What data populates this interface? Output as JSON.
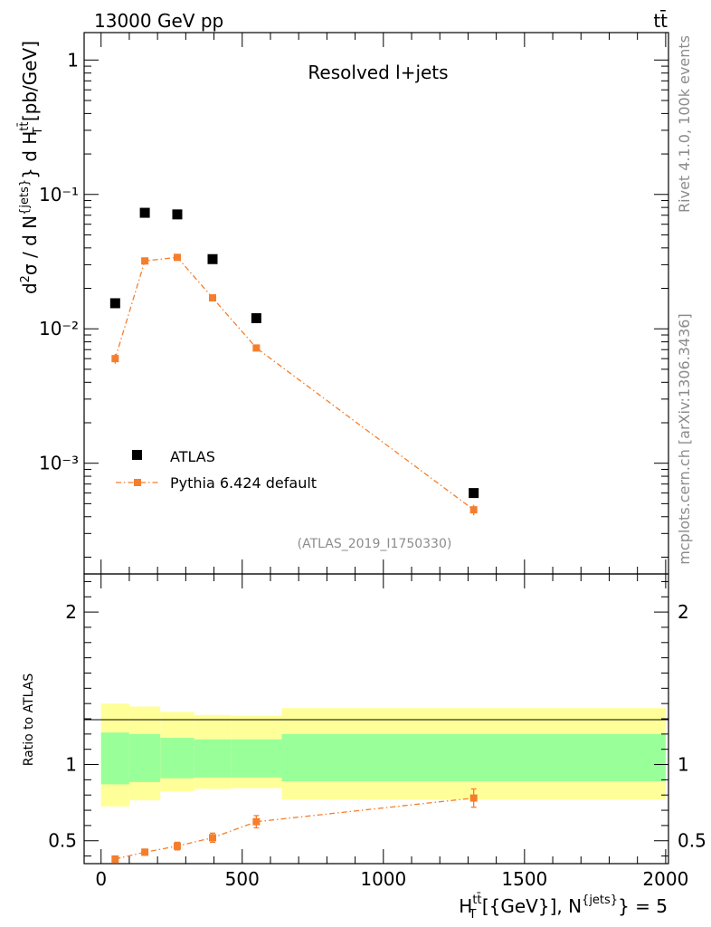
{
  "header": {
    "left": "13000 GeV pp",
    "right": "tt̄"
  },
  "side_labels": {
    "rivet": "Rivet 4.1.0,  100k events",
    "mcplots": "mcplots.cern.ch [arXiv:1306.3436]"
  },
  "chart_data": [
    {
      "type": "scatter",
      "title": "Resolved l+jets",
      "ylabel": "d²σ / d N^{jets} d H_T^{tt̄} [pb/GeV]",
      "yscale": "log",
      "ylim": [
        0.00015,
        1.6
      ],
      "xlim": [
        -60,
        2010
      ],
      "analysis_tag": "(ATLAS_2019_I1750330)",
      "y_ticks": [
        {
          "value": 1,
          "label": "1"
        },
        {
          "value": 0.1,
          "label": "10⁻¹"
        },
        {
          "value": 0.01,
          "label": "10⁻²"
        },
        {
          "value": 0.001,
          "label": "10⁻³"
        }
      ],
      "legend": {
        "position": "bottom-left",
        "entries": [
          "ATLAS",
          "Pythia 6.424 default"
        ]
      },
      "series": [
        {
          "name": "ATLAS",
          "style": "black-squares",
          "color": "#000000",
          "x": [
            50,
            155,
            270,
            395,
            550,
            1320
          ],
          "y": [
            0.0155,
            0.073,
            0.071,
            0.033,
            0.012,
            0.0006
          ]
        },
        {
          "name": "Pythia 6.424 default",
          "style": "orange-dashdot-line",
          "color": "#f57e2d",
          "x": [
            50,
            155,
            270,
            395,
            550,
            1320
          ],
          "y": [
            0.006,
            0.032,
            0.034,
            0.017,
            0.0072,
            0.00045
          ],
          "yerr": [
            0.0005,
            0.0015,
            0.0015,
            0.0008,
            0.0003,
            4e-05
          ]
        }
      ]
    },
    {
      "type": "line",
      "ylabel": "Ratio to ATLAS",
      "xlabel": "H_T^{tt̄} [{GeV}], N^{jets} = 5",
      "xlim": [
        -60,
        2010
      ],
      "ylim": [
        0.35,
        2.25
      ],
      "x_ticks": [
        0,
        500,
        1000,
        1500,
        2000
      ],
      "x_tick_labels": [
        "0",
        "500",
        "1000",
        "1500",
        "2000"
      ],
      "y_ticks": [
        0.5,
        1,
        2
      ],
      "y_tick_labels": [
        "0.5",
        "1",
        "2"
      ],
      "bands": {
        "bins": [
          [
            0,
            100
          ],
          [
            100,
            210
          ],
          [
            210,
            330
          ],
          [
            330,
            460
          ],
          [
            460,
            640
          ],
          [
            640,
            2000
          ]
        ],
        "yellow_lo": [
          0.725,
          0.765,
          0.825,
          0.84,
          0.845,
          0.77
        ],
        "yellow_hi": [
          1.4,
          1.38,
          1.345,
          1.325,
          1.32,
          1.37
        ],
        "green_lo": [
          0.87,
          0.885,
          0.91,
          0.915,
          0.915,
          0.89
        ],
        "green_hi": [
          1.21,
          1.2,
          1.175,
          1.165,
          1.165,
          1.2
        ],
        "yellow_color": "#ffff99",
        "green_color": "#99ff99"
      },
      "series": [
        {
          "name": "Pythia 6.424 default",
          "color": "#f57e2d",
          "x": [
            50,
            155,
            270,
            395,
            550,
            1320
          ],
          "y": [
            0.38,
            0.425,
            0.465,
            0.52,
            0.625,
            0.78
          ],
          "yerr": [
            0.02,
            0.02,
            0.025,
            0.03,
            0.04,
            0.06
          ]
        }
      ]
    }
  ]
}
